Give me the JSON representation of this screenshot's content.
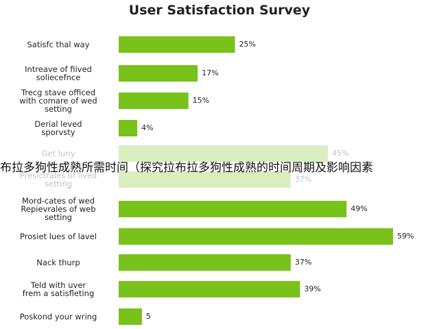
{
  "chart_data": {
    "type": "barh",
    "title": "User Satisfaction Survey",
    "categories": [
      "Satisfc thal way",
      "Intreave of fiived\nsoliecefnce",
      "Trecg stave officed\nwith comare of wed\nsetting",
      "Derial leved\nsporvsty",
      "Get luny",
      "Presictrales of lived\nsetting",
      "Mord-cates of wed\nRepievrales of web\nsetting",
      "Prosiet lues of lavel",
      "Nack thurp",
      "Teld with uver\nfrem a satisfleting",
      "Poskond your wring"
    ],
    "values": [
      25,
      17,
      15,
      4,
      45,
      37,
      49,
      59,
      37,
      39,
      5
    ],
    "value_labels": [
      "25%",
      "17%",
      "15%",
      "4%",
      "45%",
      "37%",
      "49%",
      "59%",
      "37%",
      "39%",
      "5"
    ],
    "color": "#79c11b",
    "annotation": "布拉多狗性成熟所需时间（探究拉布拉多狗性成熟的时间周期及影响因素"
  }
}
